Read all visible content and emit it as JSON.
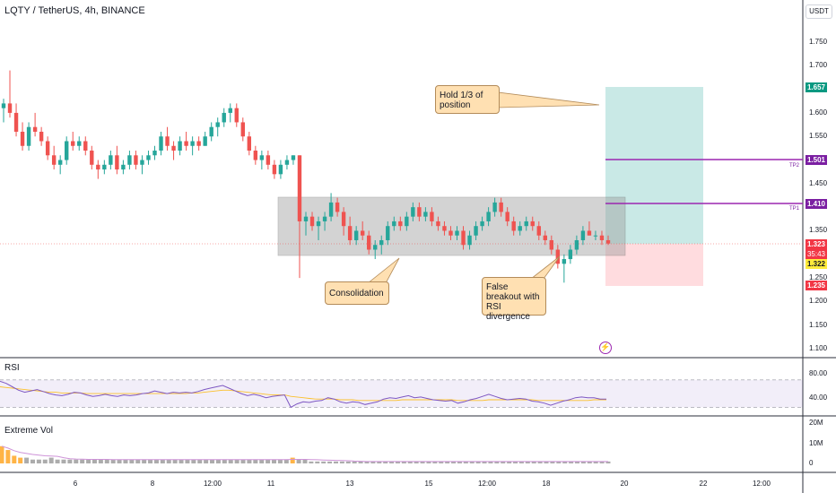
{
  "header": {
    "title": "LQTY / TetherUS, 4h, BINANCE",
    "currency": "USDT"
  },
  "price_axis": {
    "ticks": [
      "1.750",
      "1.700",
      "1.650",
      "1.600",
      "1.550",
      "1.500",
      "1.450",
      "1.400",
      "1.350",
      "1.300",
      "1.250",
      "1.200",
      "1.150",
      "1.100"
    ],
    "badges": {
      "target": "1.657",
      "tp2": "1.501",
      "tp1": "1.410",
      "last": "1.323",
      "countdown": "35:43",
      "entry": "1.322",
      "stop": "1.235"
    },
    "tp_labels": {
      "tp2": "TP2",
      "tp1": "TP1"
    }
  },
  "time_axis": {
    "ticks": [
      "6",
      "8",
      "12:00",
      "11",
      "13",
      "15",
      "12:00",
      "18",
      "20",
      "22",
      "12:00"
    ]
  },
  "panes": {
    "rsi": {
      "label": "RSI",
      "ticks": [
        "80.00",
        "40.00"
      ]
    },
    "vol": {
      "label": "Extreme Vol",
      "ticks": [
        "20M",
        "10M",
        "0"
      ]
    }
  },
  "annotations": {
    "hold": "Hold 1/3 of position",
    "consolidation": "Consolidation",
    "false_breakout": "False breakout with RSI divergence"
  },
  "colors": {
    "up": "#26a69a",
    "down": "#ef5350",
    "tp_line": "#9c27b0",
    "target_zone": "#b2dfdb",
    "stop_zone": "#ffcdd2",
    "box": "#9e9e9e",
    "callout": "#ffe0b2"
  },
  "chart_data": {
    "type": "candlestick",
    "symbol": "LQTY / TetherUS",
    "interval": "4h",
    "exchange": "BINANCE",
    "ylim": [
      1.08,
      1.8
    ],
    "candles": [
      {
        "o": 1.61,
        "h": 1.63,
        "l": 1.58,
        "c": 1.62
      },
      {
        "o": 1.62,
        "h": 1.69,
        "l": 1.59,
        "c": 1.6
      },
      {
        "o": 1.6,
        "h": 1.62,
        "l": 1.55,
        "c": 1.56
      },
      {
        "o": 1.56,
        "h": 1.58,
        "l": 1.52,
        "c": 1.53
      },
      {
        "o": 1.53,
        "h": 1.58,
        "l": 1.52,
        "c": 1.57
      },
      {
        "o": 1.57,
        "h": 1.6,
        "l": 1.55,
        "c": 1.56
      },
      {
        "o": 1.56,
        "h": 1.57,
        "l": 1.53,
        "c": 1.54
      },
      {
        "o": 1.54,
        "h": 1.55,
        "l": 1.5,
        "c": 1.51
      },
      {
        "o": 1.51,
        "h": 1.53,
        "l": 1.48,
        "c": 1.49
      },
      {
        "o": 1.49,
        "h": 1.51,
        "l": 1.47,
        "c": 1.5
      },
      {
        "o": 1.5,
        "h": 1.55,
        "l": 1.49,
        "c": 1.54
      },
      {
        "o": 1.54,
        "h": 1.56,
        "l": 1.52,
        "c": 1.53
      },
      {
        "o": 1.53,
        "h": 1.55,
        "l": 1.52,
        "c": 1.54
      },
      {
        "o": 1.54,
        "h": 1.55,
        "l": 1.51,
        "c": 1.52
      },
      {
        "o": 1.52,
        "h": 1.53,
        "l": 1.48,
        "c": 1.49
      },
      {
        "o": 1.49,
        "h": 1.5,
        "l": 1.46,
        "c": 1.48
      },
      {
        "o": 1.48,
        "h": 1.5,
        "l": 1.47,
        "c": 1.49
      },
      {
        "o": 1.49,
        "h": 1.52,
        "l": 1.48,
        "c": 1.51
      },
      {
        "o": 1.51,
        "h": 1.53,
        "l": 1.47,
        "c": 1.48
      },
      {
        "o": 1.48,
        "h": 1.5,
        "l": 1.47,
        "c": 1.49
      },
      {
        "o": 1.49,
        "h": 1.52,
        "l": 1.48,
        "c": 1.51
      },
      {
        "o": 1.51,
        "h": 1.52,
        "l": 1.48,
        "c": 1.49
      },
      {
        "o": 1.49,
        "h": 1.51,
        "l": 1.47,
        "c": 1.5
      },
      {
        "o": 1.5,
        "h": 1.52,
        "l": 1.49,
        "c": 1.51
      },
      {
        "o": 1.51,
        "h": 1.53,
        "l": 1.5,
        "c": 1.52
      },
      {
        "o": 1.52,
        "h": 1.56,
        "l": 1.51,
        "c": 1.55
      },
      {
        "o": 1.55,
        "h": 1.57,
        "l": 1.52,
        "c": 1.53
      },
      {
        "o": 1.53,
        "h": 1.54,
        "l": 1.5,
        "c": 1.52
      },
      {
        "o": 1.52,
        "h": 1.55,
        "l": 1.51,
        "c": 1.54
      },
      {
        "o": 1.54,
        "h": 1.56,
        "l": 1.52,
        "c": 1.53
      },
      {
        "o": 1.53,
        "h": 1.55,
        "l": 1.51,
        "c": 1.54
      },
      {
        "o": 1.54,
        "h": 1.55,
        "l": 1.52,
        "c": 1.53
      },
      {
        "o": 1.53,
        "h": 1.56,
        "l": 1.53,
        "c": 1.55
      },
      {
        "o": 1.55,
        "h": 1.58,
        "l": 1.54,
        "c": 1.57
      },
      {
        "o": 1.57,
        "h": 1.59,
        "l": 1.55,
        "c": 1.58
      },
      {
        "o": 1.58,
        "h": 1.61,
        "l": 1.57,
        "c": 1.6
      },
      {
        "o": 1.6,
        "h": 1.62,
        "l": 1.58,
        "c": 1.61
      },
      {
        "o": 1.61,
        "h": 1.62,
        "l": 1.57,
        "c": 1.58
      },
      {
        "o": 1.58,
        "h": 1.59,
        "l": 1.54,
        "c": 1.55
      },
      {
        "o": 1.55,
        "h": 1.56,
        "l": 1.51,
        "c": 1.52
      },
      {
        "o": 1.52,
        "h": 1.53,
        "l": 1.49,
        "c": 1.5
      },
      {
        "o": 1.5,
        "h": 1.52,
        "l": 1.48,
        "c": 1.51
      },
      {
        "o": 1.51,
        "h": 1.52,
        "l": 1.48,
        "c": 1.49
      },
      {
        "o": 1.49,
        "h": 1.5,
        "l": 1.46,
        "c": 1.47
      },
      {
        "o": 1.47,
        "h": 1.5,
        "l": 1.46,
        "c": 1.49
      },
      {
        "o": 1.49,
        "h": 1.51,
        "l": 1.48,
        "c": 1.5
      },
      {
        "o": 1.5,
        "h": 1.51,
        "l": 1.49,
        "c": 1.51
      },
      {
        "o": 1.51,
        "h": 1.51,
        "l": 1.25,
        "c": 1.37
      },
      {
        "o": 1.37,
        "h": 1.39,
        "l": 1.34,
        "c": 1.38
      },
      {
        "o": 1.38,
        "h": 1.39,
        "l": 1.35,
        "c": 1.36
      },
      {
        "o": 1.36,
        "h": 1.38,
        "l": 1.33,
        "c": 1.37
      },
      {
        "o": 1.37,
        "h": 1.39,
        "l": 1.35,
        "c": 1.38
      },
      {
        "o": 1.38,
        "h": 1.43,
        "l": 1.37,
        "c": 1.41
      },
      {
        "o": 1.41,
        "h": 1.42,
        "l": 1.38,
        "c": 1.39
      },
      {
        "o": 1.39,
        "h": 1.4,
        "l": 1.34,
        "c": 1.36
      },
      {
        "o": 1.36,
        "h": 1.38,
        "l": 1.32,
        "c": 1.33
      },
      {
        "o": 1.33,
        "h": 1.36,
        "l": 1.32,
        "c": 1.35
      },
      {
        "o": 1.35,
        "h": 1.37,
        "l": 1.33,
        "c": 1.34
      },
      {
        "o": 1.34,
        "h": 1.35,
        "l": 1.3,
        "c": 1.31
      },
      {
        "o": 1.31,
        "h": 1.33,
        "l": 1.29,
        "c": 1.32
      },
      {
        "o": 1.32,
        "h": 1.34,
        "l": 1.3,
        "c": 1.33
      },
      {
        "o": 1.33,
        "h": 1.37,
        "l": 1.32,
        "c": 1.36
      },
      {
        "o": 1.36,
        "h": 1.38,
        "l": 1.35,
        "c": 1.37
      },
      {
        "o": 1.37,
        "h": 1.38,
        "l": 1.35,
        "c": 1.36
      },
      {
        "o": 1.36,
        "h": 1.39,
        "l": 1.35,
        "c": 1.38
      },
      {
        "o": 1.38,
        "h": 1.41,
        "l": 1.37,
        "c": 1.4
      },
      {
        "o": 1.4,
        "h": 1.41,
        "l": 1.37,
        "c": 1.38
      },
      {
        "o": 1.38,
        "h": 1.4,
        "l": 1.37,
        "c": 1.39
      },
      {
        "o": 1.39,
        "h": 1.4,
        "l": 1.36,
        "c": 1.37
      },
      {
        "o": 1.37,
        "h": 1.38,
        "l": 1.35,
        "c": 1.36
      },
      {
        "o": 1.36,
        "h": 1.37,
        "l": 1.34,
        "c": 1.35
      },
      {
        "o": 1.35,
        "h": 1.36,
        "l": 1.33,
        "c": 1.34
      },
      {
        "o": 1.34,
        "h": 1.36,
        "l": 1.33,
        "c": 1.35
      },
      {
        "o": 1.35,
        "h": 1.36,
        "l": 1.31,
        "c": 1.32
      },
      {
        "o": 1.32,
        "h": 1.35,
        "l": 1.31,
        "c": 1.34
      },
      {
        "o": 1.34,
        "h": 1.37,
        "l": 1.33,
        "c": 1.36
      },
      {
        "o": 1.36,
        "h": 1.38,
        "l": 1.35,
        "c": 1.37
      },
      {
        "o": 1.37,
        "h": 1.4,
        "l": 1.36,
        "c": 1.39
      },
      {
        "o": 1.39,
        "h": 1.42,
        "l": 1.38,
        "c": 1.41
      },
      {
        "o": 1.41,
        "h": 1.42,
        "l": 1.38,
        "c": 1.39
      },
      {
        "o": 1.39,
        "h": 1.4,
        "l": 1.36,
        "c": 1.37
      },
      {
        "o": 1.37,
        "h": 1.38,
        "l": 1.34,
        "c": 1.35
      },
      {
        "o": 1.35,
        "h": 1.37,
        "l": 1.34,
        "c": 1.36
      },
      {
        "o": 1.36,
        "h": 1.38,
        "l": 1.35,
        "c": 1.37
      },
      {
        "o": 1.37,
        "h": 1.38,
        "l": 1.35,
        "c": 1.36
      },
      {
        "o": 1.36,
        "h": 1.37,
        "l": 1.33,
        "c": 1.34
      },
      {
        "o": 1.34,
        "h": 1.35,
        "l": 1.32,
        "c": 1.33
      },
      {
        "o": 1.33,
        "h": 1.34,
        "l": 1.3,
        "c": 1.31
      },
      {
        "o": 1.31,
        "h": 1.32,
        "l": 1.27,
        "c": 1.28
      },
      {
        "o": 1.28,
        "h": 1.3,
        "l": 1.24,
        "c": 1.29
      },
      {
        "o": 1.29,
        "h": 1.32,
        "l": 1.28,
        "c": 1.31
      },
      {
        "o": 1.31,
        "h": 1.34,
        "l": 1.3,
        "c": 1.33
      },
      {
        "o": 1.33,
        "h": 1.36,
        "l": 1.32,
        "c": 1.35
      },
      {
        "o": 1.35,
        "h": 1.37,
        "l": 1.34,
        "c": 1.34
      },
      {
        "o": 1.34,
        "h": 1.35,
        "l": 1.33,
        "c": 1.34
      },
      {
        "o": 1.34,
        "h": 1.35,
        "l": 1.32,
        "c": 1.33
      },
      {
        "o": 1.33,
        "h": 1.34,
        "l": 1.32,
        "c": 1.323
      }
    ],
    "consolidation_box": {
      "top": 1.42,
      "bottom": 1.3
    },
    "levels": {
      "tp2": 1.501,
      "tp1": 1.41,
      "entry": 1.322,
      "target": 1.657,
      "stop": 1.235
    },
    "rsi": {
      "ylim": [
        20,
        100
      ],
      "bands": [
        70,
        30
      ],
      "values": [
        68,
        65,
        60,
        55,
        52,
        54,
        56,
        53,
        50,
        48,
        47,
        49,
        52,
        51,
        48,
        46,
        47,
        49,
        47,
        46,
        48,
        47,
        48,
        50,
        51,
        54,
        52,
        50,
        52,
        51,
        52,
        51,
        53,
        56,
        58,
        60,
        62,
        58,
        54,
        50,
        47,
        49,
        47,
        44,
        46,
        47,
        48,
        30,
        35,
        38,
        37,
        39,
        40,
        44,
        42,
        38,
        36,
        38,
        37,
        34,
        36,
        38,
        42,
        44,
        43,
        45,
        47,
        44,
        45,
        43,
        41,
        40,
        39,
        40,
        36,
        38,
        41,
        43,
        46,
        49,
        46,
        43,
        41,
        42,
        43,
        42,
        39,
        38,
        36,
        33,
        36,
        39,
        41,
        44,
        45,
        44,
        44,
        42,
        42
      ],
      "signal": [
        60,
        59,
        58,
        57,
        56,
        55,
        54,
        53,
        52,
        52,
        51,
        51,
        51,
        51,
        50,
        50,
        50,
        50,
        50,
        50,
        50,
        50,
        50,
        50,
        50,
        50,
        50,
        50,
        50,
        50,
        50,
        51,
        51,
        52,
        53,
        54,
        55,
        55,
        54,
        53,
        52,
        51,
        50,
        49,
        48,
        48,
        48,
        46,
        45,
        44,
        43,
        42,
        42,
        42,
        42,
        41,
        41,
        41,
        40,
        40,
        40,
        40,
        40,
        40,
        40,
        41,
        41,
        41,
        41,
        41,
        41,
        41,
        41,
        41,
        40,
        40,
        40,
        40,
        40,
        41,
        41,
        41,
        41,
        41,
        41,
        41,
        41,
        40,
        40,
        40,
        40,
        40,
        40,
        40,
        40,
        40,
        41,
        41,
        41
      ]
    },
    "volume": {
      "ylim": [
        0,
        22
      ],
      "values": [
        9,
        7,
        4,
        3,
        3,
        2,
        2,
        2,
        3,
        2,
        2,
        2,
        2,
        2,
        2,
        2,
        2,
        2,
        2,
        2,
        2,
        2,
        2,
        2,
        2,
        2,
        2,
        2,
        2,
        2,
        2,
        2,
        2,
        2,
        2,
        2,
        2,
        2,
        2,
        2,
        2,
        2,
        2,
        2,
        2,
        2,
        2,
        3,
        2,
        2,
        1,
        1,
        1,
        1,
        1,
        1,
        1,
        1,
        1,
        1,
        1,
        1,
        1,
        1,
        1,
        1,
        1,
        1,
        1,
        1,
        1,
        1,
        1,
        1,
        1,
        1,
        1,
        1,
        1,
        1,
        1,
        1,
        1,
        1,
        1,
        1,
        1,
        1,
        1,
        1,
        1,
        1,
        1,
        1,
        1,
        1,
        1,
        1,
        1
      ],
      "highlight": [
        1,
        1,
        1,
        1,
        0,
        0,
        0,
        0,
        0,
        0,
        0,
        0,
        0,
        0,
        0,
        0,
        0,
        0,
        0,
        0,
        0,
        0,
        0,
        0,
        0,
        0,
        0,
        0,
        0,
        0,
        0,
        0,
        0,
        0,
        0,
        0,
        0,
        0,
        0,
        0,
        0,
        0,
        0,
        0,
        0,
        0,
        0,
        1,
        0,
        0,
        0,
        0,
        0,
        0,
        0,
        0,
        0,
        0,
        0,
        0,
        0,
        0,
        0,
        0,
        0,
        0,
        0,
        0,
        0,
        0,
        0,
        0,
        0,
        0,
        0,
        0,
        0,
        0,
        0,
        0,
        0,
        0,
        0,
        0,
        0,
        0,
        0,
        0,
        0,
        0,
        0,
        0,
        0,
        0,
        0,
        0,
        0,
        0,
        0
      ]
    }
  }
}
